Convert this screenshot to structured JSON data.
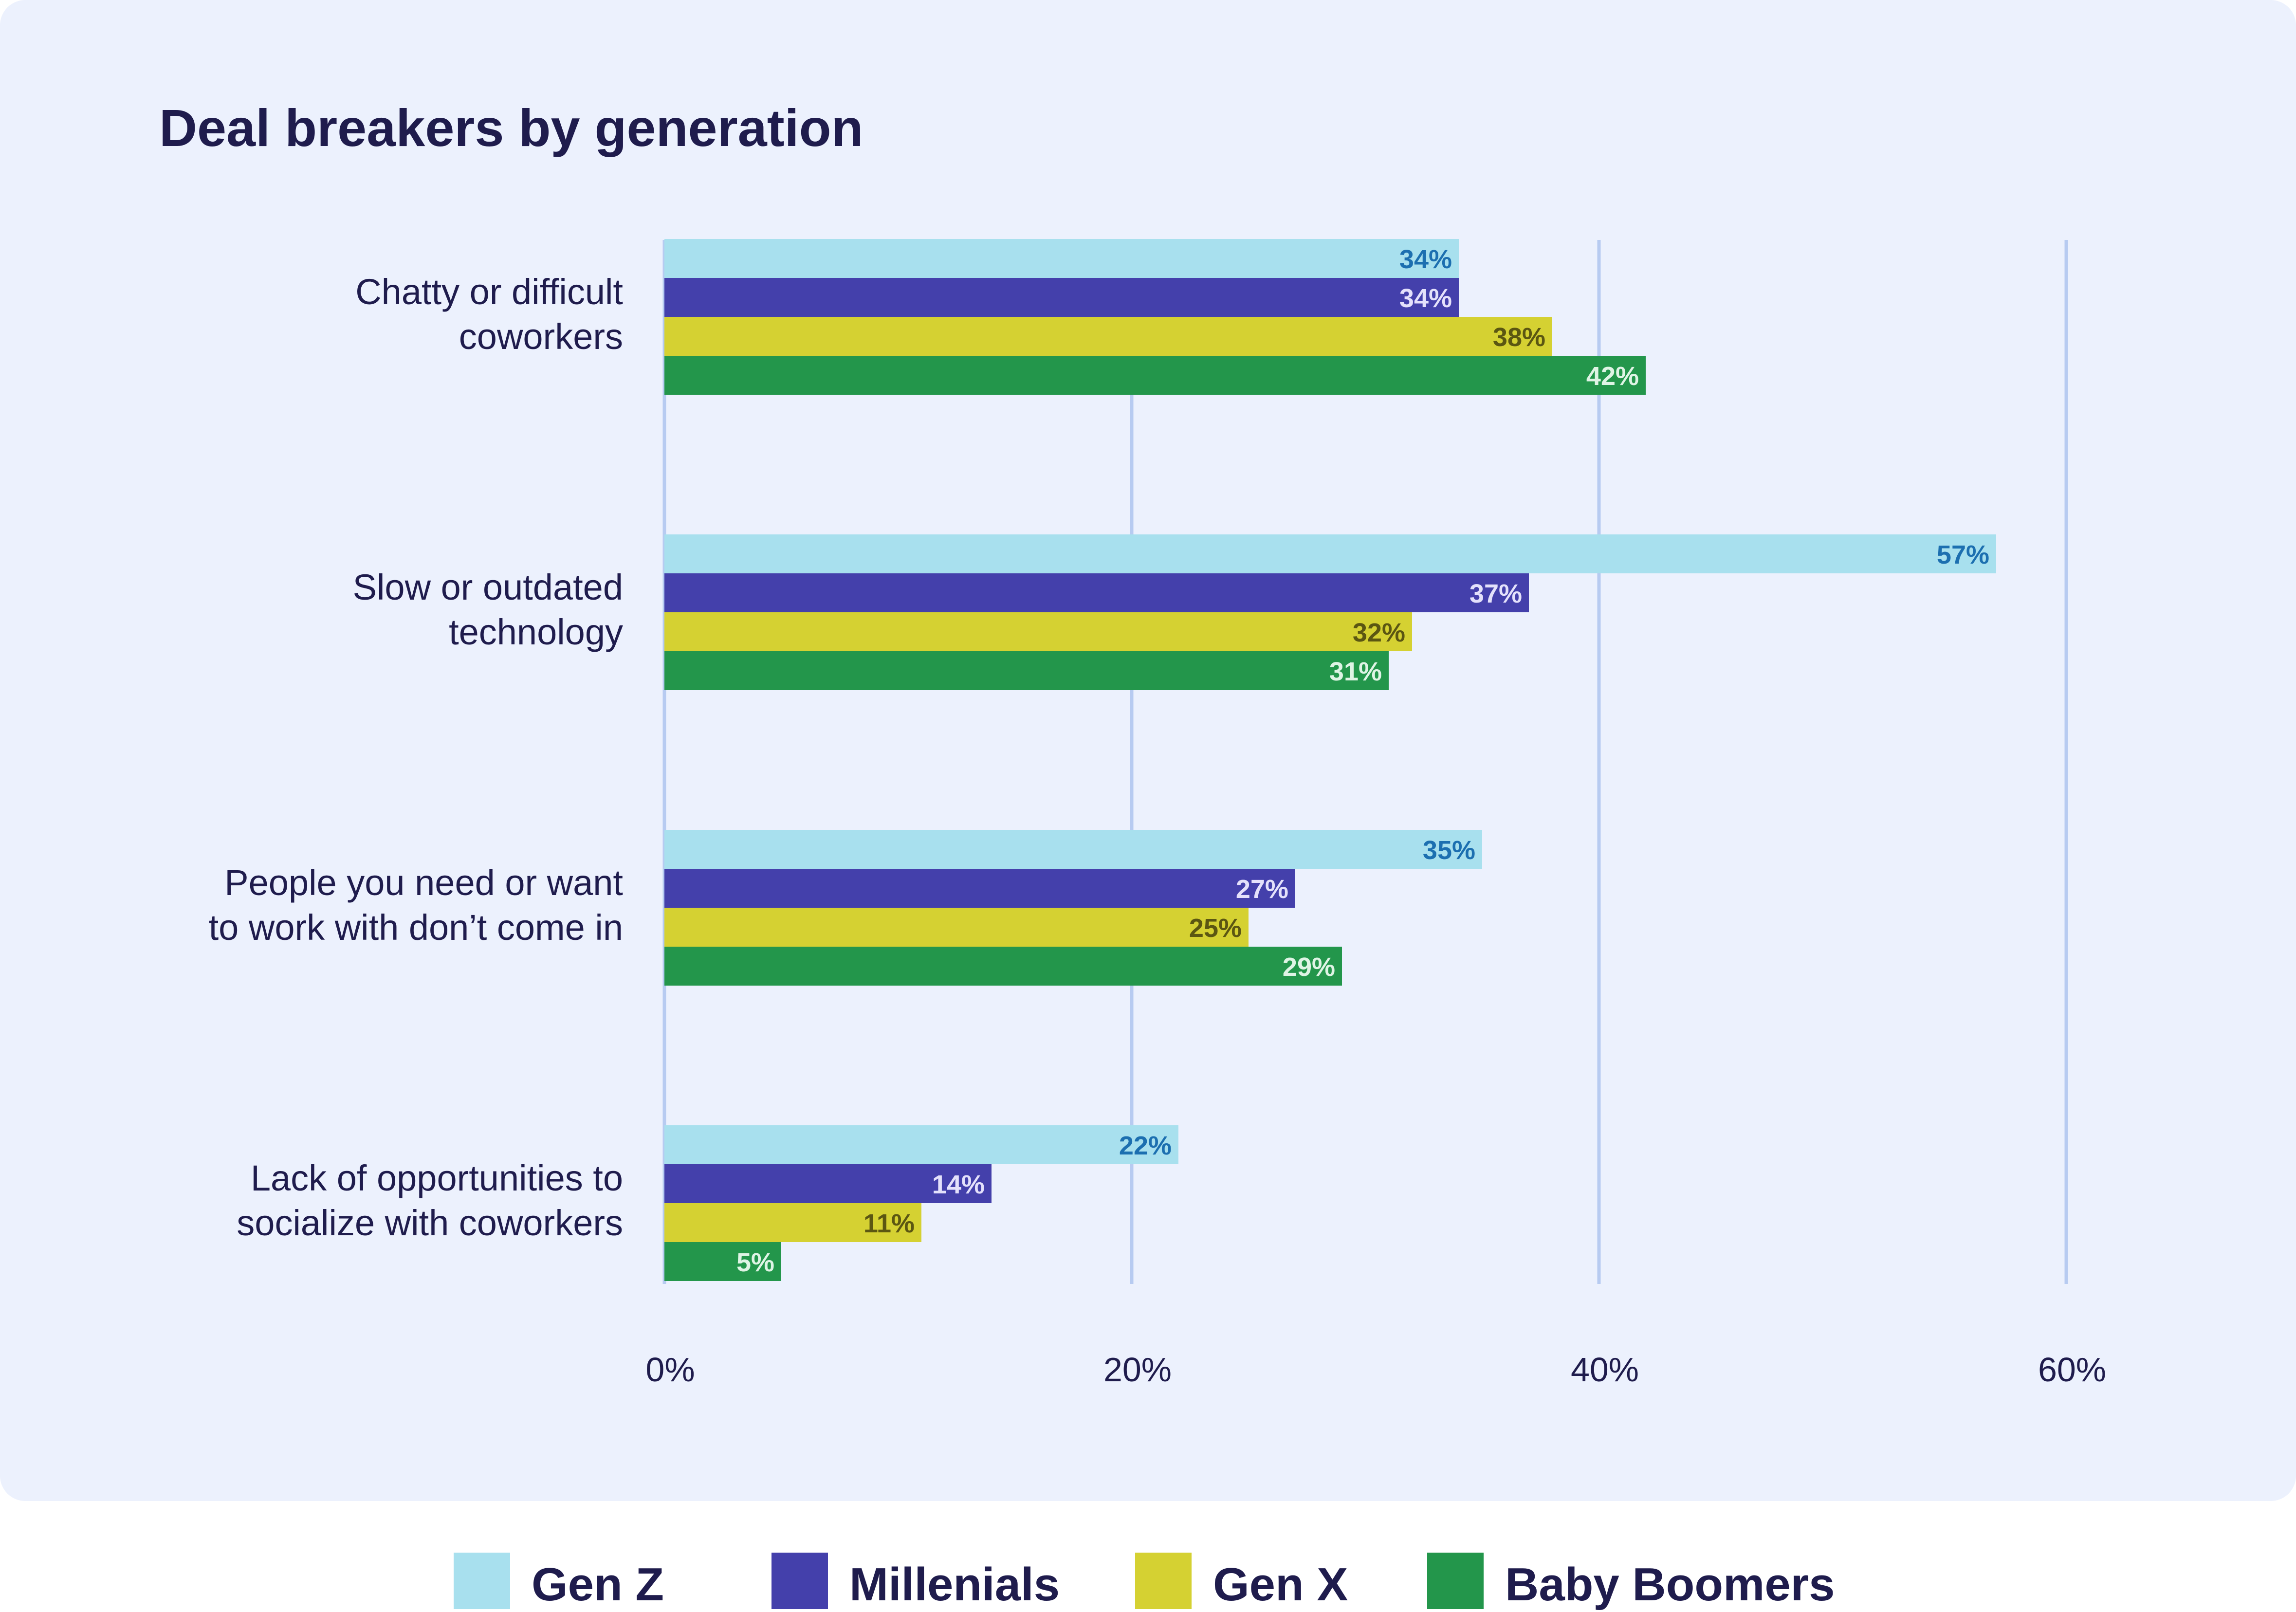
{
  "chart_data": {
    "type": "bar",
    "orientation": "horizontal",
    "title": "Deal breakers by generation",
    "xlabel": "",
    "ylabel": "",
    "xlim": [
      0,
      60
    ],
    "grid": true,
    "legend_position": "bottom",
    "tick_values": [
      0,
      20,
      40,
      60
    ],
    "tick_labels": [
      "0%",
      "20%",
      "40%",
      "60%"
    ],
    "categories": [
      [
        "Chatty or difficult",
        "coworkers"
      ],
      [
        "Slow or outdated",
        "technology"
      ],
      [
        "People you need or want",
        "to work with don’t come in"
      ],
      [
        "Lack of opportunities to",
        "socialize with coworkers"
      ]
    ],
    "series": [
      {
        "name": "Gen Z",
        "color": "#a8e0ee",
        "label_color": "#1c6fb0",
        "values": [
          34,
          57,
          35,
          22
        ],
        "labels": [
          "34%",
          "57%",
          "35%",
          "22%"
        ]
      },
      {
        "name": "Millenials",
        "color": "#4440ab",
        "label_color": "#e4e1fb",
        "values": [
          34,
          37,
          27,
          14
        ],
        "labels": [
          "34%",
          "37%",
          "27%",
          "14%"
        ]
      },
      {
        "name": "Gen X",
        "color": "#d5d132",
        "label_color": "#5b5612",
        "values": [
          38,
          32,
          25,
          11
        ],
        "labels": [
          "38%",
          "32%",
          "25%",
          "11%"
        ]
      },
      {
        "name": "Baby Boomers",
        "color": "#23964b",
        "label_color": "#dff4e5",
        "values": [
          42,
          31,
          29,
          5
        ],
        "labels": [
          "42%",
          "31%",
          "29%",
          "5%"
        ]
      }
    ]
  },
  "colors": {
    "panel_background": "#ecf1fd",
    "gridline": "#b7cbf1",
    "text": "#1f1c4d"
  }
}
